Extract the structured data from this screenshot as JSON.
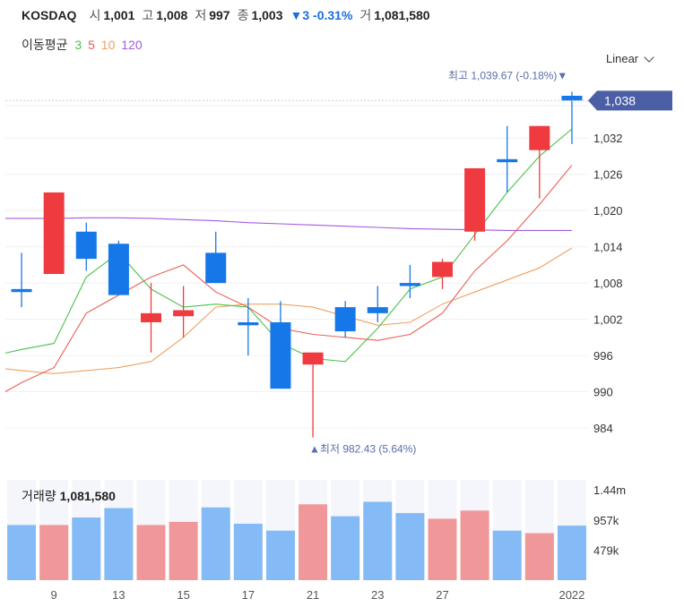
{
  "header": {
    "symbol": "KOSDAQ",
    "open_label": "시",
    "open": "1,001",
    "high_label": "고",
    "high": "1,008",
    "low_label": "저",
    "low": "997",
    "close_label": "종",
    "close": "1,003",
    "change": "▼3 -0.31%",
    "volume_label": "거",
    "volume": "1,081,580"
  },
  "ma_legend": {
    "label": "이동평균",
    "periods": [
      {
        "text": "3",
        "color": "#4cc24c"
      },
      {
        "text": "5",
        "color": "#e8605a"
      },
      {
        "text": "10",
        "color": "#f0a15e"
      },
      {
        "text": "120",
        "color": "#a35ae0"
      }
    ]
  },
  "scale_selector": "Linear",
  "colors": {
    "up": "#ef3b3f",
    "down": "#1678e8",
    "vol_up": "#f0979a",
    "vol_down": "#84baf5",
    "vol_bg": "#f5f6fb",
    "price_tag": "#4a5fa5"
  },
  "chart_data": {
    "type": "candlestick",
    "y_ticks": [
      "1,032",
      "1,026",
      "1,020",
      "1,014",
      "1,008",
      "1,002",
      "996",
      "990",
      "984"
    ],
    "y_tick_values": [
      1032,
      1026,
      1020,
      1014,
      1008,
      1002,
      996,
      990,
      984
    ],
    "ylim": [
      980,
      1043
    ],
    "x_tick_labels": [
      "9",
      "13",
      "15",
      "17",
      "21",
      "23",
      "27",
      "2022"
    ],
    "x_tick_indices": [
      1,
      3,
      5,
      7,
      9,
      11,
      13,
      17
    ],
    "candles": [
      {
        "o": 1007,
        "h": 1013,
        "l": 1004,
        "c": 1006.5
      },
      {
        "o": 1009.5,
        "h": 1023,
        "l": 1009.5,
        "c": 1023
      },
      {
        "o": 1016.5,
        "h": 1018,
        "l": 1010,
        "c": 1012
      },
      {
        "o": 1014.5,
        "h": 1015,
        "l": 1006,
        "c": 1006
      },
      {
        "o": 1001.5,
        "h": 1008,
        "l": 996.5,
        "c": 1003
      },
      {
        "o": 1002.5,
        "h": 1007.5,
        "l": 999,
        "c": 1003.5
      },
      {
        "o": 1013,
        "h": 1016.5,
        "l": 1008,
        "c": 1008
      },
      {
        "o": 1001.5,
        "h": 1005.5,
        "l": 996,
        "c": 1001
      },
      {
        "o": 1001.5,
        "h": 1005,
        "l": 990.5,
        "c": 990.5
      },
      {
        "o": 994.5,
        "h": 996.5,
        "l": 982.43,
        "c": 996.5
      },
      {
        "o": 1004,
        "h": 1005,
        "l": 999,
        "c": 1000
      },
      {
        "o": 1004,
        "h": 1007.5,
        "l": 1001.5,
        "c": 1003
      },
      {
        "o": 1008,
        "h": 1011,
        "l": 1005.5,
        "c": 1007.5
      },
      {
        "o": 1009,
        "h": 1012,
        "l": 1007,
        "c": 1011.5
      },
      {
        "o": 1016.5,
        "h": 1027,
        "l": 1015,
        "c": 1027
      },
      {
        "o": 1028.5,
        "h": 1034,
        "l": 1023,
        "c": 1028
      },
      {
        "o": 1030,
        "h": 1034,
        "l": 1022,
        "c": 1034
      },
      {
        "o": 1039,
        "h": 1039.67,
        "l": 1031,
        "c": 1038.2
      }
    ],
    "volumes_m": [
      0.88,
      0.88,
      1.0,
      1.15,
      0.88,
      0.93,
      1.16,
      0.9,
      0.79,
      1.21,
      1.02,
      1.25,
      1.07,
      0.98,
      1.11,
      0.79,
      0.75,
      0.87
    ],
    "volume_ticks": [
      "1.44m",
      "957k",
      "479k"
    ],
    "volume_tick_values_m": [
      1.44,
      0.957,
      0.479
    ],
    "ma3": [
      997,
      998,
      1009,
      1013,
      1007,
      1004,
      1004.5,
      1004,
      998,
      995.5,
      995,
      1000.5,
      1007,
      1009,
      1016,
      1023,
      1029,
      1033.5
    ],
    "ma5": [
      991.5,
      994,
      1003,
      1006,
      1009,
      1011,
      1006.5,
      1004,
      1000.5,
      999.5,
      999,
      998.5,
      999.5,
      1003,
      1010,
      1015,
      1021,
      1027.5
    ],
    "ma10": [
      993.5,
      993,
      993.5,
      994,
      995,
      999,
      1004,
      1004.5,
      1004.5,
      1004,
      1002.5,
      1001,
      1001.5,
      1004.5,
      1006.5,
      1008.5,
      1010.5,
      1013.8
    ],
    "ma120": [
      1018.7,
      1018.7,
      1018.8,
      1018.8,
      1018.7,
      1018.5,
      1018.3,
      1018.0,
      1017.8,
      1017.6,
      1017.4,
      1017.2,
      1017.0,
      1016.9,
      1016.8,
      1016.7,
      1016.7,
      1016.7
    ],
    "high_annotation": {
      "label": "최고",
      "value": "1,039.67 (-0.18%)",
      "arrow": "▼"
    },
    "low_annotation": {
      "label": "최저",
      "value": "982.43 (5.64%)",
      "arrow": "▲"
    },
    "current_price_tag": "1,038"
  },
  "volume_panel": {
    "label": "거래량",
    "value": "1,081,580"
  }
}
